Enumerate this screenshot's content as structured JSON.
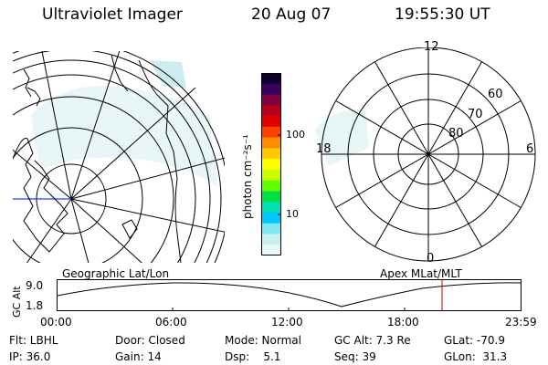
{
  "header": {
    "instrument": "Ultraviolet Imager",
    "date": "20 Aug 07",
    "time": "19:55:30 UT"
  },
  "colorbar": {
    "unit_label": "photon cm⁻²s⁻¹",
    "tick_100": "100",
    "tick_10": "10",
    "colors": [
      "#0b0030",
      "#3a0060",
      "#7a0040",
      "#b8001a",
      "#e00000",
      "#ff4000",
      "#ff8c00",
      "#ffc800",
      "#ffff00",
      "#c8ff00",
      "#60ff00",
      "#00e040",
      "#00e0b0",
      "#00c8ff",
      "#80e8f0",
      "#c8f0f0",
      "#e6f8f8"
    ]
  },
  "geo_panel": {
    "label": "Geographic Lat/Lon"
  },
  "polar_panel": {
    "label": "Apex MLat/MLT",
    "mlt_top": "12",
    "mlt_bottom": "0",
    "mlt_left": "18",
    "mlt_right": "6",
    "lat_60": "60",
    "lat_70": "70",
    "lat_80": "80"
  },
  "altitude_plot": {
    "axis_label": "GC Alt",
    "y_max_label": "9.0",
    "y_min_label": "1.8",
    "x_ticks": [
      "00:00",
      "06:00",
      "12:00",
      "18:00",
      "23:59"
    ],
    "current_marker_time": "19:55"
  },
  "footer": {
    "filter": "Flt: LBHL",
    "ip": "IP: 36.0",
    "door": "Door: Closed",
    "gain": "Gain: 14",
    "mode": "Mode: Normal",
    "dsp": "Dsp:    5.1",
    "gc_alt": "GC Alt: 7.3 Re",
    "seq": "Seq: 39",
    "glat": "GLat: -70.9",
    "glon": "GLon:  31.3"
  }
}
